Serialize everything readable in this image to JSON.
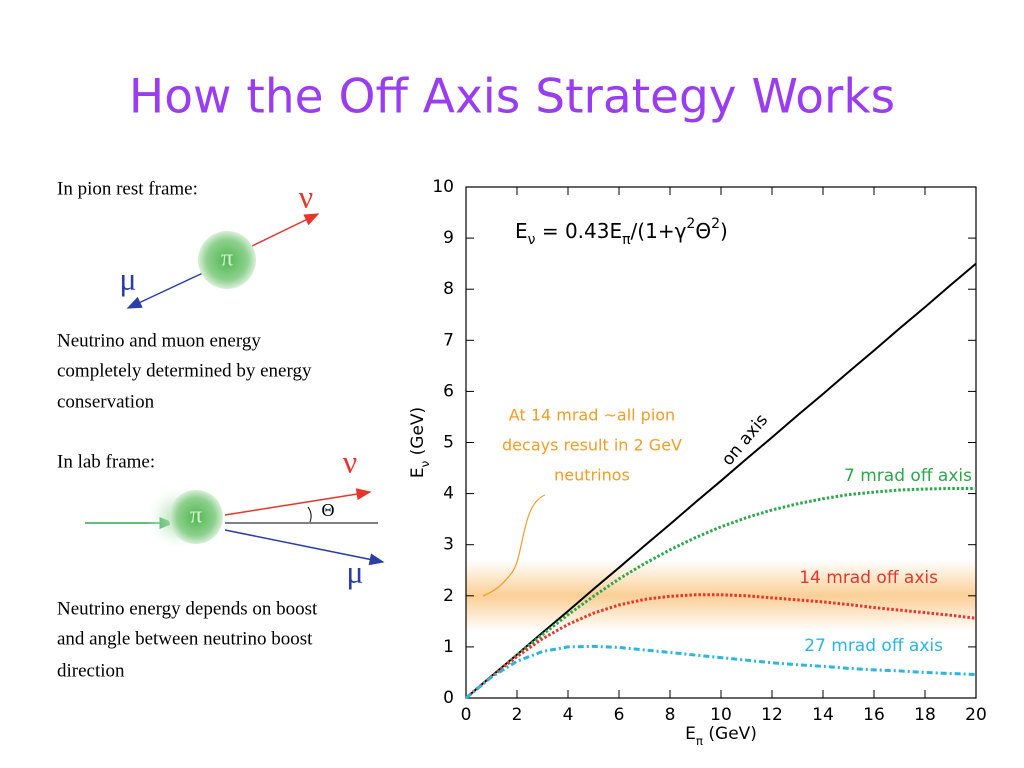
{
  "title": "How the Off Axis Strategy Works",
  "rest_frame": {
    "heading": "In pion rest frame:",
    "nu": "ν",
    "pi": "π",
    "mu": "μ",
    "caption": [
      "Neutrino and muon energy",
      "completely determined by energy",
      "conservation"
    ]
  },
  "lab_frame": {
    "heading": "In lab frame:",
    "nu": "ν",
    "pi": "π",
    "theta": "Θ",
    "mu": "μ",
    "caption": [
      "Neutrino energy depends on boost",
      "and angle between neutrino boost",
      "direction"
    ]
  },
  "chart_data": {
    "type": "line",
    "formula": [
      {
        "text": "E"
      },
      {
        "text": "ν",
        "pos": "sub"
      },
      {
        "text": " = 0.43E"
      },
      {
        "text": "π",
        "pos": "sub"
      },
      {
        "text": "/(1+γ"
      },
      {
        "text": "2",
        "pos": "sup"
      },
      {
        "text": "Θ"
      },
      {
        "text": "2",
        "pos": "sup"
      },
      {
        "text": ")"
      }
    ],
    "x_label": [
      {
        "text": "E"
      },
      {
        "text": "π",
        "pos": "sub"
      },
      {
        "text": " (GeV)"
      }
    ],
    "y_label": [
      {
        "text": "E"
      },
      {
        "text": "ν",
        "pos": "sub"
      },
      {
        "text": " (GeV)"
      }
    ],
    "annotation": {
      "lines": [
        "At 14 mrad ~all pion",
        "decays result in 2 GeV",
        "neutrinos"
      ],
      "color": "#f39c26"
    },
    "highlight_band": {
      "ylim": [
        1.3,
        2.7
      ],
      "color": "#f7a840"
    },
    "x": [
      0,
      1,
      2,
      3,
      4,
      5,
      6,
      7,
      8,
      9,
      10,
      11,
      12,
      13,
      14,
      15,
      16,
      17,
      18,
      19,
      20
    ],
    "series": [
      {
        "name": "on axis",
        "color": "#000000",
        "line_style": "solid",
        "values": [
          0,
          0.43,
          0.85,
          1.28,
          1.7,
          2.13,
          2.55,
          2.98,
          3.4,
          3.83,
          4.25,
          4.68,
          5.1,
          5.53,
          5.95,
          6.38,
          6.8,
          7.23,
          7.65,
          8.08,
          8.5
        ]
      },
      {
        "name": "7 mrad off axis",
        "color": "#2aa84a",
        "line_style": "dotted",
        "values": [
          0,
          0.42,
          0.84,
          1.24,
          1.63,
          1.99,
          2.33,
          2.63,
          2.9,
          3.14,
          3.35,
          3.53,
          3.68,
          3.8,
          3.9,
          3.98,
          4.03,
          4.07,
          4.09,
          4.1,
          4.1
        ]
      },
      {
        "name": "14 mrad off axis",
        "color": "#e8352a",
        "line_style": "dotted",
        "values": [
          0,
          0.42,
          0.81,
          1.16,
          1.44,
          1.66,
          1.82,
          1.93,
          1.99,
          2.02,
          2.02,
          2.0,
          1.96,
          1.92,
          1.88,
          1.83,
          1.77,
          1.72,
          1.67,
          1.62,
          1.56
        ]
      },
      {
        "name": "27 mrad off axis",
        "color": "#2bb5e0",
        "line_style": "dashdot",
        "values": [
          0,
          0.41,
          0.72,
          0.91,
          1.0,
          1.01,
          0.99,
          0.94,
          0.89,
          0.84,
          0.79,
          0.74,
          0.69,
          0.65,
          0.62,
          0.58,
          0.55,
          0.53,
          0.5,
          0.48,
          0.46
        ]
      }
    ],
    "xlim": [
      0,
      20
    ],
    "ylim": [
      0,
      10
    ],
    "xticks": [
      0,
      2,
      4,
      6,
      8,
      10,
      12,
      14,
      16,
      18,
      20
    ],
    "yticks": [
      0,
      1,
      2,
      3,
      4,
      5,
      6,
      7,
      8,
      9,
      10
    ]
  }
}
